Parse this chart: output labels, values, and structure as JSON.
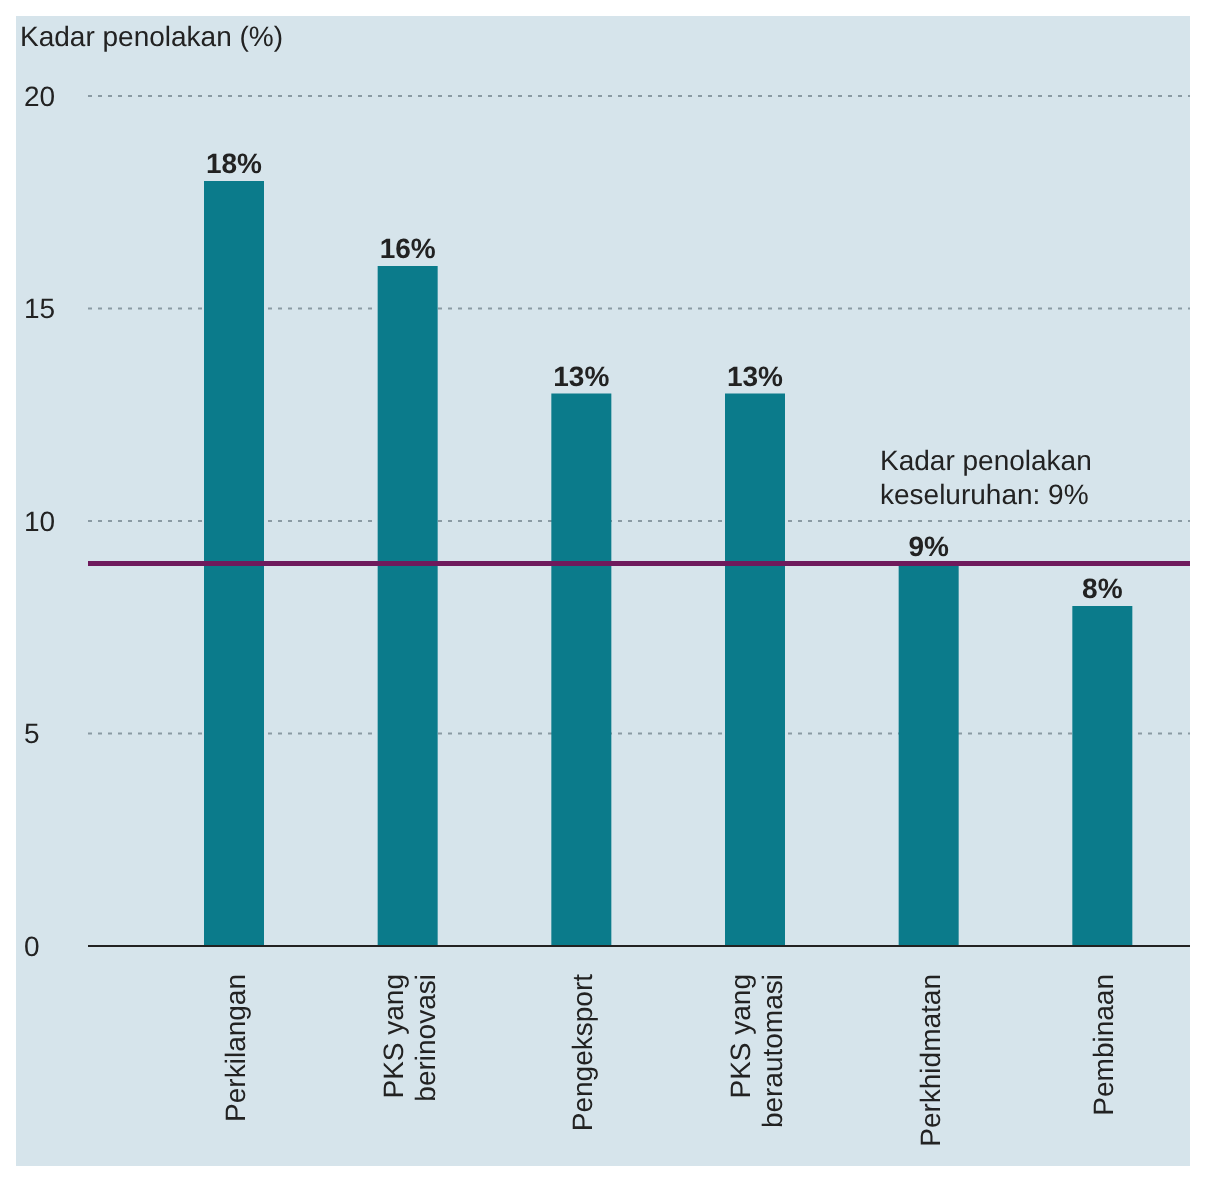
{
  "chart_data": {
    "type": "bar",
    "ylabel": "Kadar penolakan (%)",
    "categories": [
      "Perkilangan",
      "PKS yang berinovasi",
      "Pengeksport",
      "PKS yang berautomasi",
      "Perkhidmatan",
      "Pembinaan"
    ],
    "values": [
      18,
      16,
      13,
      13,
      9,
      8
    ],
    "value_labels": [
      "18%",
      "16%",
      "13%",
      "13%",
      "9%",
      "8%"
    ],
    "color": "#0b7b8b",
    "ylim": [
      0,
      20
    ],
    "yticks": [
      0,
      5,
      10,
      15,
      20
    ],
    "grid": "y",
    "ref_lines": [
      {
        "axis": "y",
        "value": 9,
        "label": "Kadar penolakan keseluruhan: 9%",
        "color": "#6e1a5c"
      }
    ]
  }
}
